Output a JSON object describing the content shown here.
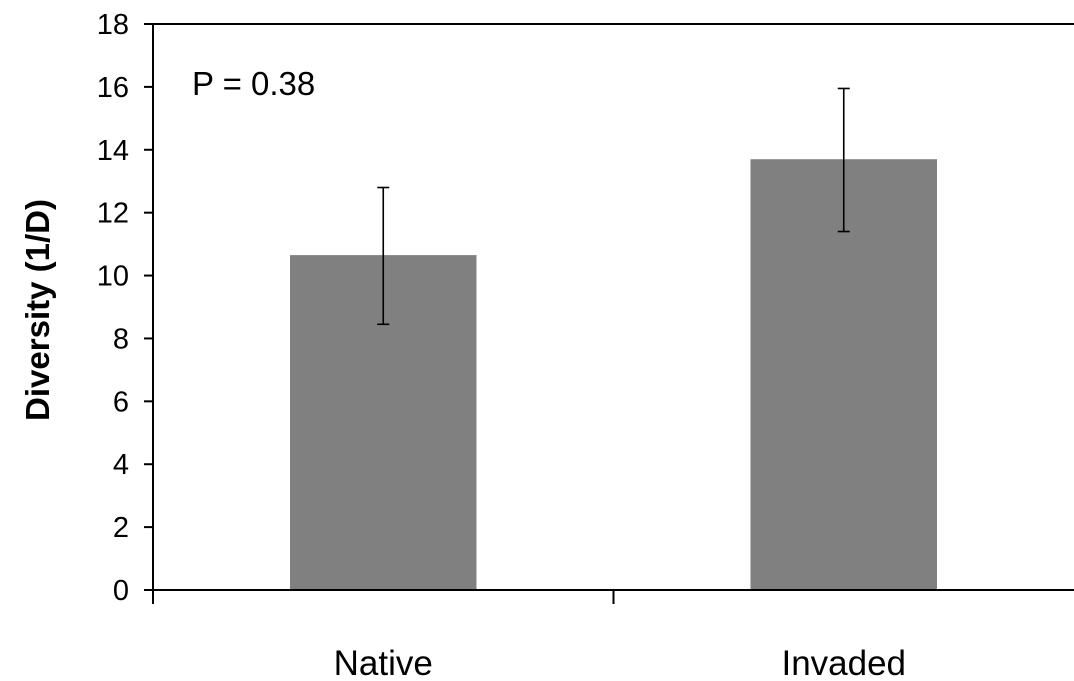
{
  "chart_data": {
    "type": "bar",
    "categories": [
      "Native",
      "Invaded"
    ],
    "values": [
      10.65,
      13.7
    ],
    "error_low": [
      8.45,
      11.4
    ],
    "error_high": [
      12.8,
      15.95
    ],
    "ylabel": "Diversity (1/D)",
    "xlabel": "",
    "ylim": [
      0,
      18
    ],
    "yticks": [
      0,
      2,
      4,
      6,
      8,
      10,
      12,
      14,
      16,
      18
    ],
    "annotation": "P = 0.38",
    "grid": false,
    "legend": "none",
    "bar_color": "#808080"
  }
}
